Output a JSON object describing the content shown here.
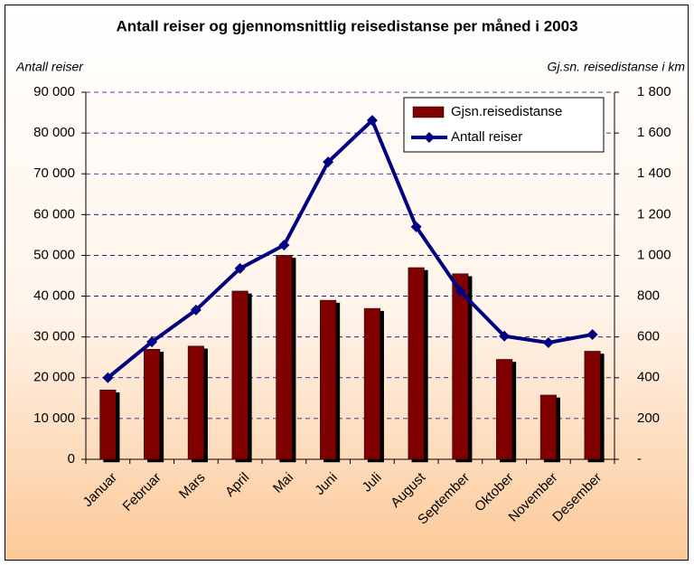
{
  "chart_data": {
    "type": "combo",
    "title": "Antall reiser og gjennomsnittlig reisedistanse per måned i 2003",
    "y_label": "Antall reiser",
    "y2_label": "Gj.sn. reisedistanse i km",
    "categories": [
      "Januar",
      "Februar",
      "Mars",
      "April",
      "Mai",
      "Juni",
      "Juli",
      "August",
      "September",
      "Oktober",
      "November",
      "Desember"
    ],
    "series": [
      {
        "name": "Gjsn.reisedistanse",
        "type": "bar",
        "axis": "y2",
        "color": "#800000",
        "values": [
          340,
          540,
          555,
          825,
          1000,
          780,
          740,
          940,
          910,
          490,
          315,
          530
        ]
      },
      {
        "name": "Antall reiser",
        "type": "line",
        "color": "#000080",
        "values": [
          20000,
          28800,
          36600,
          46800,
          52500,
          72900,
          83100,
          57000,
          41200,
          30200,
          28600,
          30600
        ]
      }
    ],
    "ylim": [
      0,
      90000
    ],
    "yticks": [
      0,
      {
        "value": 10000,
        "label": "10 000"
      },
      {
        "value": 20000,
        "label": "20 000"
      },
      {
        "value": 30000,
        "label": "30 000"
      },
      {
        "value": 40000,
        "label": "40 000"
      },
      {
        "value": 50000,
        "label": "50 000"
      },
      {
        "value": 60000,
        "label": "60 000"
      },
      {
        "value": 70000,
        "label": "70 000"
      },
      {
        "value": 80000,
        "label": "80 000"
      },
      {
        "value": 90000,
        "label": "90 000"
      }
    ],
    "y2lim": [
      0,
      1800
    ],
    "y2ticks": [
      {
        "value": 0,
        "label": "-"
      },
      200,
      400,
      600,
      800,
      {
        "value": 1000,
        "label": "1 000"
      },
      {
        "value": 1200,
        "label": "1 200"
      },
      {
        "value": 1400,
        "label": "1 400"
      },
      {
        "value": 1600,
        "label": "1 600"
      },
      {
        "value": 1800,
        "label": "1 800"
      }
    ],
    "grid": true,
    "legend": "top-right"
  }
}
